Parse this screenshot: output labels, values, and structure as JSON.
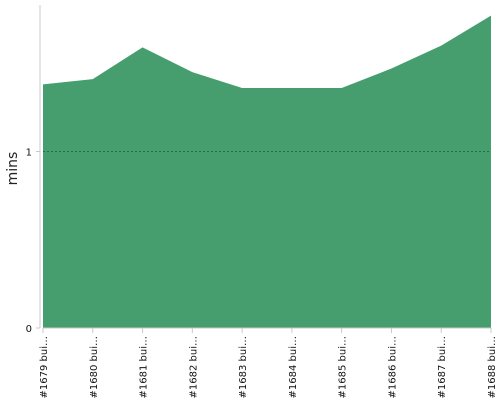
{
  "chart_data": {
    "type": "area",
    "title": "",
    "xlabel": "",
    "ylabel": "mins",
    "categories": [
      "#1679 bui…",
      "#1680 bui…",
      "#1681 bui…",
      "#1682 bui…",
      "#1683 bui…",
      "#1684 bui…",
      "#1685 bui…",
      "#1686 bui…",
      "#1687 bui…",
      "#1688 bui…"
    ],
    "series": [
      {
        "values": [
          1.38,
          1.41,
          1.59,
          1.45,
          1.36,
          1.36,
          1.36,
          1.47,
          1.6,
          1.77
        ]
      }
    ],
    "ylim": [
      0,
      1.83
    ],
    "yticks": [
      0,
      1
    ],
    "ytick_labels": [
      "0",
      "1"
    ],
    "grid": true,
    "gridline_values": [
      1
    ],
    "legend": "none",
    "colors": {
      "area": "#469d6e",
      "gridline": "#1f5e3e",
      "axis": "#c8c8c8",
      "text": "#111111"
    }
  }
}
